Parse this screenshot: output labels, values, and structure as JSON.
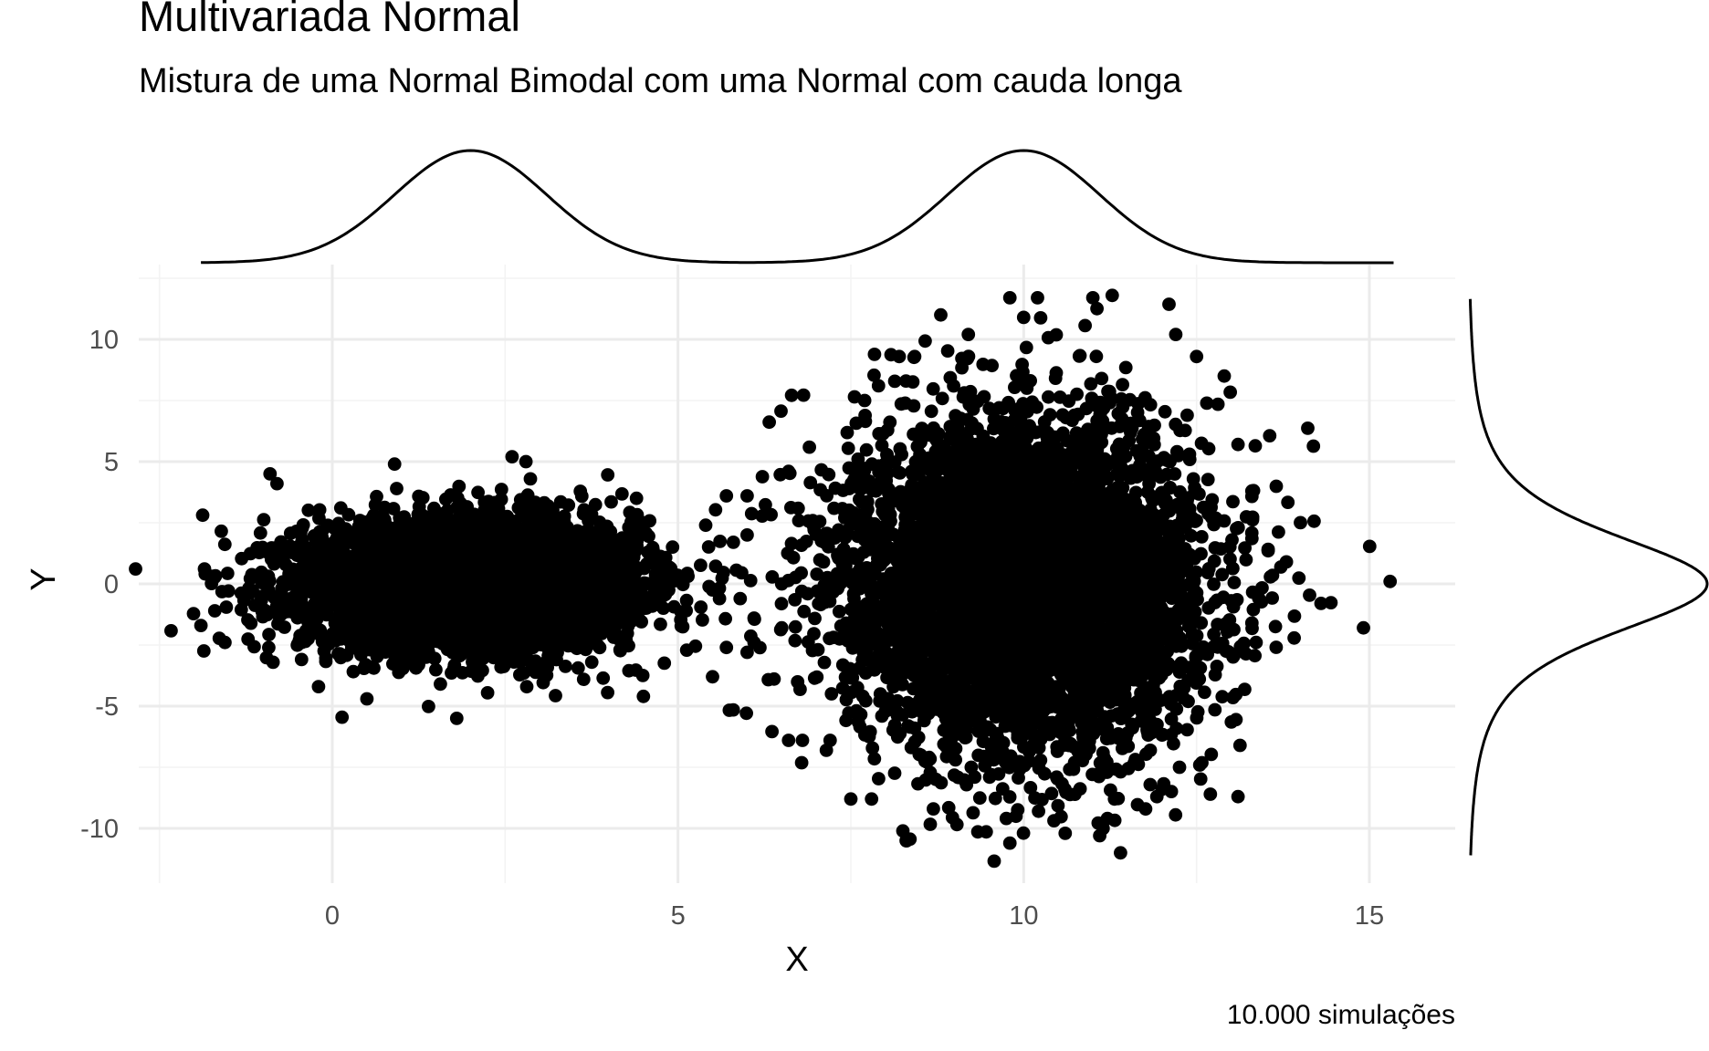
{
  "chart_data": {
    "type": "scatter",
    "title": "Multivariada Normal",
    "subtitle": "Mistura de uma Normal Bimodal com uma Normal com cauda longa",
    "xlabel": "X",
    "ylabel": "Y",
    "caption": "10.000 simulações",
    "xlim": [
      -2.5,
      17.2
    ],
    "ylim": [
      -12.4,
      12.8
    ],
    "x_ticks": [
      0,
      5,
      10,
      15
    ],
    "y_ticks": [
      -10,
      -5,
      0,
      5,
      10
    ],
    "x_tick_labels": [
      "0",
      "5",
      "10",
      "15"
    ],
    "y_tick_labels": [
      "-10",
      "-5",
      "0",
      "5",
      "10"
    ],
    "grid": true,
    "marginal_x": "density",
    "marginal_y": "density",
    "point_color": "#000000",
    "n_points": 10000,
    "clusters": [
      {
        "center": [
          2,
          0
        ],
        "sd": [
          1.2,
          1.3
        ],
        "approx_points": 5000
      },
      {
        "center": [
          10,
          0
        ],
        "sd": [
          1.3,
          3.3
        ],
        "approx_points": 5000
      }
    ],
    "outliers": [
      [
        15.3,
        0.1
      ],
      [
        14.3,
        -0.8
      ],
      [
        13.8,
        0.9
      ],
      [
        13.3,
        3.8
      ],
      [
        13.3,
        -1.6
      ],
      [
        13.1,
        -8.7
      ],
      [
        12.9,
        8.5
      ],
      [
        13.1,
        5.7
      ],
      [
        11.0,
        11.7
      ],
      [
        10.2,
        11.7
      ],
      [
        9.8,
        11.7
      ],
      [
        9.2,
        10.2
      ],
      [
        10.0,
        10.9
      ],
      [
        11.4,
        -11.0
      ],
      [
        11.1,
        -10.3
      ],
      [
        10.6,
        -10.2
      ],
      [
        9.8,
        -10.6
      ],
      [
        8.3,
        -10.5
      ],
      [
        7.5,
        -8.8
      ],
      [
        7.8,
        -8.8
      ],
      [
        6.6,
        -6.4
      ],
      [
        6.8,
        -6.4
      ],
      [
        7.2,
        -6.4
      ],
      [
        5.7,
        3.6
      ],
      [
        6.0,
        3.6
      ],
      [
        5.4,
        2.4
      ],
      [
        6.0,
        2.0
      ],
      [
        5.8,
        1.7
      ],
      [
        6.6,
        4.6
      ],
      [
        7.9,
        8.1
      ],
      [
        8.2,
        9.3
      ],
      [
        7.7,
        7.5
      ],
      [
        5.9,
        -0.6
      ],
      [
        5.6,
        -0.6
      ],
      [
        6.1,
        -1.4
      ],
      [
        6.1,
        -2.4
      ],
      [
        5.7,
        -2.6
      ],
      [
        5.5,
        -3.8
      ],
      [
        6.0,
        -2.8
      ],
      [
        4.5,
        -4.6
      ],
      [
        4.4,
        3.5
      ],
      [
        2.8,
        5.0
      ],
      [
        2.6,
        5.2
      ],
      [
        0.9,
        4.9
      ],
      [
        -0.9,
        4.5
      ],
      [
        -0.8,
        4.1
      ],
      [
        -1.9,
        -1.7
      ],
      [
        -1.7,
        -1.1
      ],
      [
        1.8,
        -5.5
      ],
      [
        -0.2,
        -4.2
      ],
      [
        0.5,
        -4.7
      ],
      [
        12.7,
        -8.6
      ],
      [
        12.0,
        -8.4
      ],
      [
        12.5,
        9.3
      ],
      [
        12.2,
        10.2
      ],
      [
        8.8,
        11.0
      ],
      [
        6.5,
        0.0
      ],
      [
        6.5,
        -1.8
      ]
    ]
  }
}
